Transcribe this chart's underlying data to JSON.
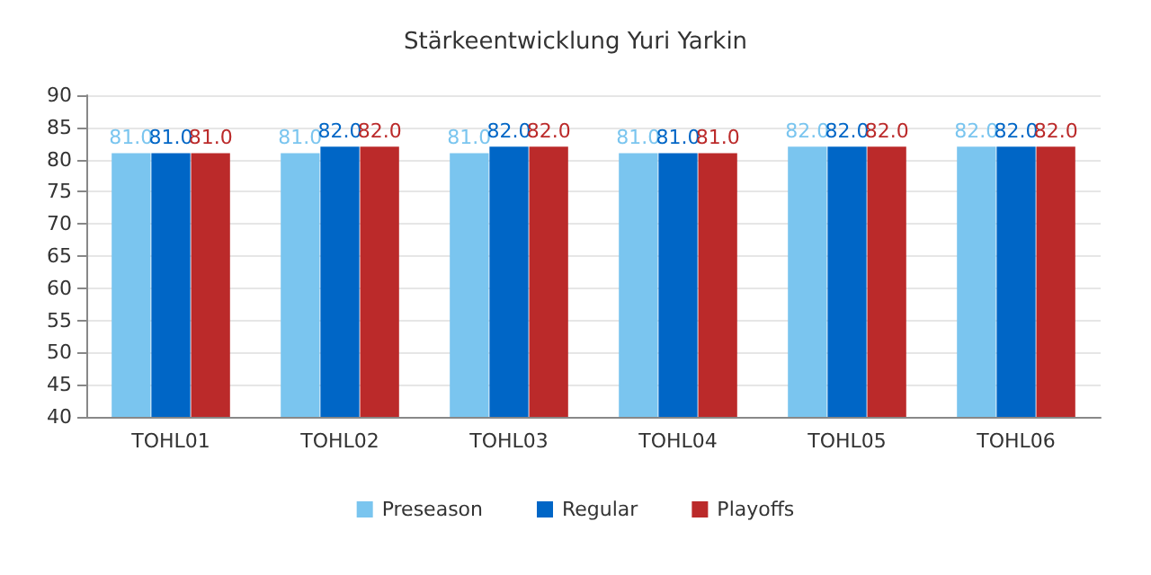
{
  "chart_data": {
    "type": "bar",
    "title": "Stärkeentwicklung Yuri Yarkin",
    "categories": [
      "TOHL01",
      "TOHL02",
      "TOHL03",
      "TOHL04",
      "TOHL05",
      "TOHL06"
    ],
    "series": [
      {
        "name": "Preseason",
        "color": "#7ac5ef",
        "values": [
          81,
          81,
          81,
          81,
          82,
          82
        ],
        "value_labels": [
          "81.0",
          "81.0",
          "81.0",
          "81.0",
          "82.0",
          "82.0"
        ]
      },
      {
        "name": "Regular",
        "color": "#0066c6",
        "values": [
          81,
          82,
          82,
          81,
          82,
          82
        ],
        "value_labels": [
          "81.0",
          "82.0",
          "82.0",
          "81.0",
          "82.0",
          "82.0"
        ]
      },
      {
        "name": "Playoffs",
        "color": "#bb2a2a",
        "values": [
          81,
          82,
          82,
          81,
          82,
          82
        ],
        "value_labels": [
          "81.0",
          "82.0",
          "82.0",
          "81.0",
          "82.0",
          "82.0"
        ]
      }
    ],
    "ylim": [
      40,
      90
    ],
    "yticks": [
      40,
      45,
      50,
      55,
      60,
      65,
      70,
      75,
      80,
      85,
      90
    ],
    "grid": "y",
    "legend": "bottom"
  }
}
